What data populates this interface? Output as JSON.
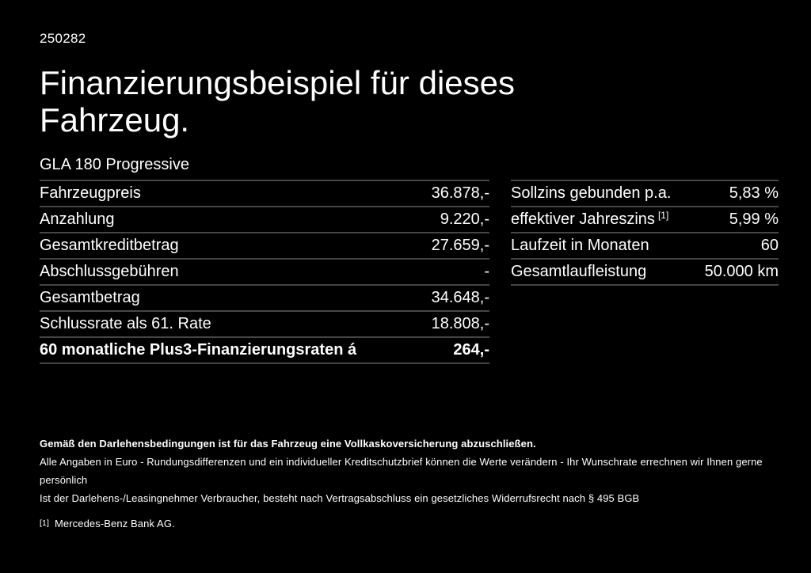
{
  "colors": {
    "background": "#000000",
    "text": "#ffffff",
    "divider": "#454545"
  },
  "header": {
    "ref_number": "250282",
    "title": "Finanzierungsbeispiel für dieses Fahrzeug.",
    "vehicle_model": "GLA 180 Progressive"
  },
  "finance_table": {
    "rows": [
      {
        "label": "Fahrzeugpreis",
        "value": "36.878,-"
      },
      {
        "label": "Anzahlung",
        "value": "9.220,-"
      },
      {
        "label": "Gesamtkreditbetrag",
        "value": "27.659,-"
      },
      {
        "label": "Abschlussgebühren",
        "value": "-"
      },
      {
        "label": "Gesamtbetrag",
        "value": "34.648,-"
      },
      {
        "label": "Schlussrate als 61. Rate",
        "value": "18.808,-"
      },
      {
        "label": "60 monatliche Plus3-Finanzierungsraten á",
        "value": "264,-",
        "bold": true
      }
    ]
  },
  "conditions_table": {
    "rows": [
      {
        "label": "Sollzins gebunden p.a.",
        "value": "5,83 %"
      },
      {
        "label": "effektiver Jahreszins",
        "footnote": "[1]",
        "value": "5,99 %"
      },
      {
        "label": "Laufzeit in Monaten",
        "value": "60"
      },
      {
        "label": "Gesamtlaufleistung",
        "value": "50.000 km"
      }
    ]
  },
  "footer": {
    "insurance_note": "Gemäß den Darlehensbedingungen ist für das Fahrzeug eine Vollkaskoversicherung abzuschließen.",
    "disclaimer_line1": "Alle Angaben in Euro - Rundungsdifferenzen und ein individueller Kreditschutzbrief können die Werte verändern - Ihr Wunschrate errechnen wir Ihnen gerne persönlich",
    "disclaimer_line2": "Ist der Darlehens-/Leasingnehmer Verbraucher, besteht nach Vertragsabschluss ein gesetzliches Widerrufsrecht nach § 495 BGB",
    "footnote_marker": "[1]",
    "footnote_text": "Mercedes-Benz Bank AG."
  }
}
